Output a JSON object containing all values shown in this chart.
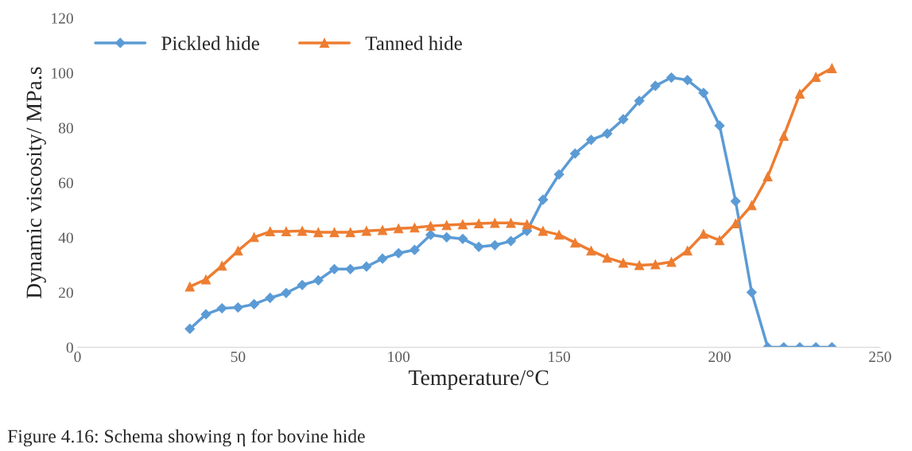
{
  "chart_data": {
    "type": "line",
    "xlabel": "Temperature/°C",
    "ylabel": "Dynamic viscosity/ MPa.s",
    "x": [
      35,
      40,
      45,
      50,
      55,
      60,
      65,
      70,
      75,
      80,
      85,
      90,
      95,
      100,
      105,
      110,
      115,
      120,
      125,
      130,
      135,
      140,
      145,
      150,
      155,
      160,
      165,
      170,
      175,
      180,
      185,
      190,
      195,
      200,
      205,
      210,
      215,
      220,
      225,
      230,
      235
    ],
    "series": [
      {
        "name": "Pickled hide",
        "color": "#5b9bd5",
        "marker": "diamond",
        "values": [
          6.7,
          12,
          14.2,
          14.5,
          15.7,
          18,
          19.8,
          22.7,
          24.4,
          28.5,
          28.5,
          29.4,
          32.3,
          34.3,
          35.5,
          41,
          40.1,
          39.5,
          36.6,
          37.2,
          38.7,
          42.4,
          53.8,
          63,
          70.6,
          75.6,
          77.9,
          83.1,
          89.8,
          95.3,
          98.3,
          97.4,
          92.7,
          80.8,
          53.2,
          20,
          0,
          0,
          0,
          0,
          0
        ]
      },
      {
        "name": "Tanned hide",
        "color": "#ed7d31",
        "marker": "triangle",
        "values": [
          22.1,
          24.7,
          29.7,
          35.2,
          40.1,
          42.2,
          42.2,
          42.4,
          41.9,
          41.9,
          41.9,
          42.4,
          42.7,
          43.3,
          43.6,
          44.2,
          44.5,
          44.8,
          45.1,
          45.3,
          45.3,
          44.8,
          42.4,
          41,
          38.1,
          35.2,
          32.6,
          30.8,
          29.9,
          30.2,
          31.1,
          35.2,
          41.3,
          39,
          45.1,
          51.7,
          62.2,
          77,
          92.4,
          98.5,
          101.7
        ]
      }
    ],
    "xlim": [
      0,
      250
    ],
    "xticks": [
      0,
      50,
      100,
      150,
      200,
      250
    ],
    "ylim": [
      0,
      120
    ],
    "yticks": [
      0,
      20,
      40,
      60,
      80,
      100,
      120
    ],
    "grid": false,
    "legend": "top left",
    "line_style": "solid",
    "annotations": [
      "Figure 4.16: Schema showing η for bovine hide"
    ]
  }
}
